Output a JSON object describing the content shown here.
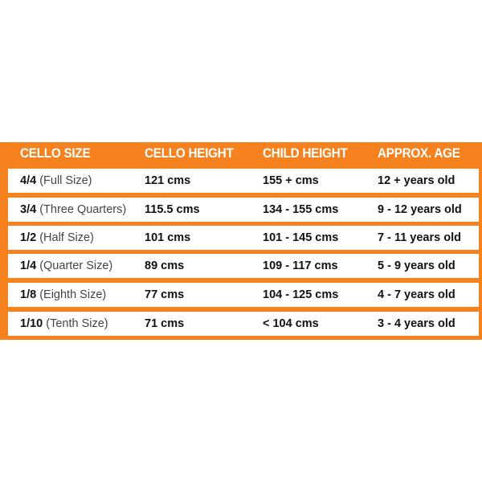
{
  "colors": {
    "accent": "#f5821f",
    "row_bg": "#ffffff",
    "header_text": "#ffffff"
  },
  "headers": [
    "CELLO SIZE",
    "CELLO HEIGHT",
    "CHILD HEIGHT",
    "APPROX. AGE"
  ],
  "rows": [
    {
      "size": "4/4",
      "size_desc": "(Full Size)",
      "cello_height": "121 cms",
      "child_height": "155 + cms",
      "age": "12 + years old"
    },
    {
      "size": "3/4",
      "size_desc": "(Three Quarters)",
      "cello_height": "115.5 cms",
      "child_height": "134 - 155 cms",
      "age": "9 - 12 years old"
    },
    {
      "size": "1/2",
      "size_desc": "(Half Size)",
      "cello_height": "101 cms",
      "child_height": "101 - 145 cms",
      "age": "7 - 11 years old"
    },
    {
      "size": "1/4",
      "size_desc": "(Quarter Size)",
      "cello_height": "89 cms",
      "child_height": "109 - 117 cms",
      "age": "5 - 9 years old"
    },
    {
      "size": "1/8",
      "size_desc": "(Eighth Size)",
      "cello_height": "77 cms",
      "child_height": "104 - 125 cms",
      "age": "4 - 7 years old"
    },
    {
      "size": "1/10",
      "size_desc": "(Tenth Size)",
      "cello_height": "71 cms",
      "child_height": "< 104 cms",
      "age": "3 - 4 years old"
    }
  ]
}
